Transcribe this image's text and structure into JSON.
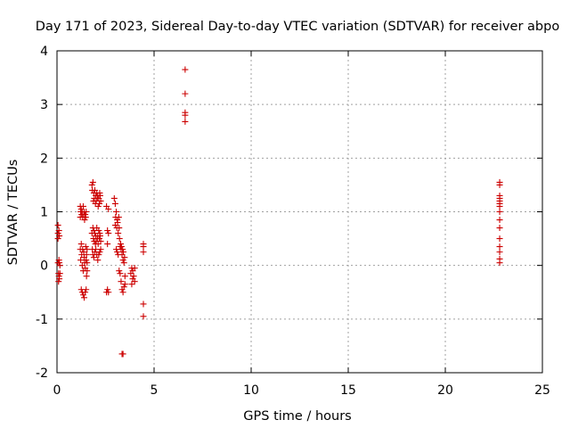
{
  "chart_data": {
    "type": "scatter",
    "title": "Day 171 of 2023, Sidereal Day-to-day VTEC variation (SDTVAR) for receiver abpo",
    "xlabel": "GPS time / hours",
    "ylabel": "SDTVAR / TECUs",
    "xlim": [
      0,
      25
    ],
    "ylim": [
      -2,
      4
    ],
    "xticks": [
      0,
      5,
      10,
      15,
      20,
      25
    ],
    "xtick_labels": [
      "0",
      "5",
      "10",
      "15",
      "20",
      "25"
    ],
    "yticks": [
      -2,
      -1,
      0,
      1,
      2,
      3,
      4
    ],
    "ytick_labels": [
      "-2",
      "-1",
      "0",
      "1",
      "2",
      "3",
      "4"
    ],
    "grid": true,
    "marker": "+",
    "marker_color": "#cc0000",
    "series": [
      {
        "name": "SDTVAR",
        "x": [
          0.05,
          0.05,
          0.05,
          0.05,
          0.08,
          0.08,
          0.1,
          0.1,
          0.1,
          0.12,
          0.12,
          0.12,
          0.15,
          0.15,
          1.2,
          1.2,
          1.2,
          1.22,
          1.22,
          1.25,
          1.25,
          1.25,
          1.27,
          1.27,
          1.3,
          1.3,
          1.3,
          1.32,
          1.32,
          1.35,
          1.35,
          1.35,
          1.38,
          1.38,
          1.4,
          1.4,
          1.4,
          1.42,
          1.42,
          1.45,
          1.45,
          1.45,
          1.48,
          1.48,
          1.5,
          1.5,
          1.5,
          1.52,
          1.52,
          1.55,
          1.55,
          1.55,
          1.8,
          1.8,
          1.82,
          1.82,
          1.85,
          1.85,
          1.85,
          1.88,
          1.88,
          1.9,
          1.9,
          1.9,
          1.92,
          1.92,
          1.95,
          1.95,
          1.95,
          1.98,
          1.98,
          2.0,
          2.0,
          2.0,
          2.02,
          2.02,
          2.05,
          2.05,
          2.05,
          2.08,
          2.08,
          2.1,
          2.1,
          2.1,
          2.12,
          2.12,
          2.15,
          2.15,
          2.15,
          2.18,
          2.18,
          2.2,
          2.2,
          2.2,
          2.22,
          2.22,
          2.25,
          2.25,
          2.25,
          2.55,
          2.55,
          2.6,
          2.6,
          2.6,
          2.65,
          2.65,
          2.65,
          2.95,
          3.0,
          3.0,
          3.02,
          3.05,
          3.05,
          3.08,
          3.1,
          3.1,
          3.12,
          3.15,
          3.15,
          3.18,
          3.2,
          3.2,
          3.22,
          3.25,
          3.25,
          3.28,
          3.3,
          3.3,
          3.32,
          3.35,
          3.35,
          3.38,
          3.4,
          3.4,
          3.42,
          3.45,
          3.45,
          3.48,
          3.5,
          3.5,
          3.35,
          3.4,
          3.8,
          3.85,
          3.85,
          3.9,
          3.9,
          3.95,
          4.0,
          4.0,
          4.45,
          4.45,
          4.45,
          4.45,
          4.45,
          6.6,
          6.6,
          6.6,
          6.6,
          6.6,
          22.8,
          22.8,
          22.8,
          22.8,
          22.8,
          22.8,
          22.8,
          22.8,
          22.8,
          22.8,
          22.8,
          22.8,
          22.8,
          22.8,
          22.8
        ],
        "y": [
          0.75,
          0.6,
          0.5,
          0.05,
          -0.15,
          -0.3,
          0.65,
          0.1,
          -0.2,
          0.55,
          0.05,
          -0.25,
          0.0,
          -0.15,
          1.1,
          0.9,
          0.3,
          1.0,
          0.1,
          1.05,
          0.4,
          -0.45,
          0.95,
          0.2,
          1.0,
          0.0,
          -0.5,
          0.9,
          0.3,
          1.1,
          -0.1,
          -0.55,
          0.95,
          0.25,
          1.0,
          0.15,
          -0.6,
          0.85,
          0.05,
          0.95,
          -0.05,
          -0.5,
          0.9,
          0.35,
          1.0,
          0.1,
          -0.45,
          0.2,
          -0.2,
          0.3,
          0.05,
          -0.1,
          1.5,
          0.6,
          1.4,
          0.3,
          1.55,
          0.7,
          0.2,
          1.2,
          0.5,
          1.35,
          0.65,
          0.15,
          1.25,
          0.45,
          1.4,
          0.6,
          0.25,
          1.15,
          0.4,
          1.3,
          0.55,
          0.3,
          1.2,
          0.45,
          1.35,
          0.7,
          0.2,
          1.25,
          0.5,
          1.3,
          0.55,
          0.1,
          1.1,
          0.4,
          1.25,
          0.65,
          0.2,
          1.15,
          0.5,
          1.35,
          0.6,
          0.25,
          1.3,
          0.55,
          1.2,
          0.45,
          0.3,
          1.1,
          -0.5,
          0.65,
          0.4,
          -0.45,
          1.05,
          0.6,
          -0.5,
          1.25,
          1.15,
          0.75,
          0.9,
          1.0,
          0.3,
          0.7,
          0.85,
          0.25,
          0.8,
          0.6,
          0.2,
          0.9,
          0.7,
          -0.1,
          0.5,
          0.35,
          -0.15,
          0.4,
          0.3,
          -0.3,
          0.35,
          0.2,
          -0.45,
          0.3,
          0.1,
          -0.5,
          0.25,
          0.05,
          -0.4,
          0.15,
          -0.2,
          -0.35,
          -1.65,
          -1.65,
          -0.15,
          -0.35,
          -0.05,
          -0.25,
          -0.1,
          -0.2,
          -0.3,
          -0.05,
          0.4,
          0.35,
          0.25,
          -0.72,
          -0.95,
          3.65,
          3.2,
          2.85,
          2.8,
          2.68,
          1.55,
          1.5,
          1.3,
          1.25,
          1.2,
          1.15,
          1.1,
          1.0,
          0.85,
          0.7,
          0.5,
          0.35,
          0.25,
          0.12,
          0.05
        ]
      }
    ]
  }
}
